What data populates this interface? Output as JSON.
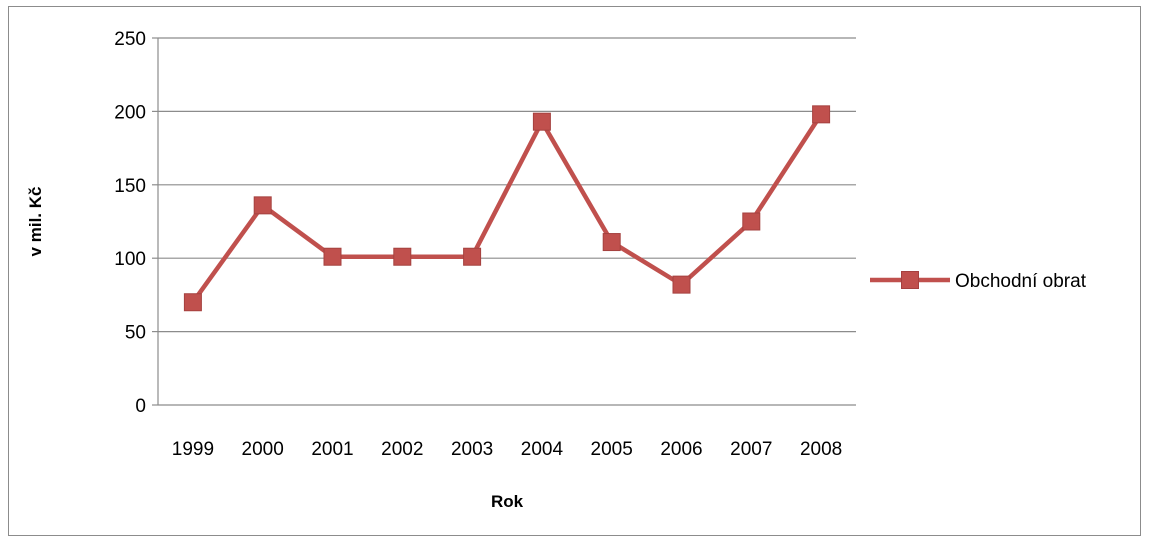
{
  "chart_data": {
    "type": "line",
    "title": "",
    "xlabel": "Rok",
    "ylabel": "v mil. Kč",
    "categories": [
      "1999",
      "2000",
      "2001",
      "2002",
      "2003",
      "2004",
      "2005",
      "2006",
      "2007",
      "2008"
    ],
    "series": [
      {
        "name": "Obchodní obrat",
        "values": [
          70,
          136,
          101,
          101,
          101,
          193,
          111,
          82,
          125,
          198
        ],
        "color": "#c0504d",
        "marker": "square"
      }
    ],
    "ylim": [
      0,
      250
    ],
    "yticks": [
      0,
      50,
      100,
      150,
      200,
      250
    ],
    "grid": true,
    "legend_position": "right"
  }
}
